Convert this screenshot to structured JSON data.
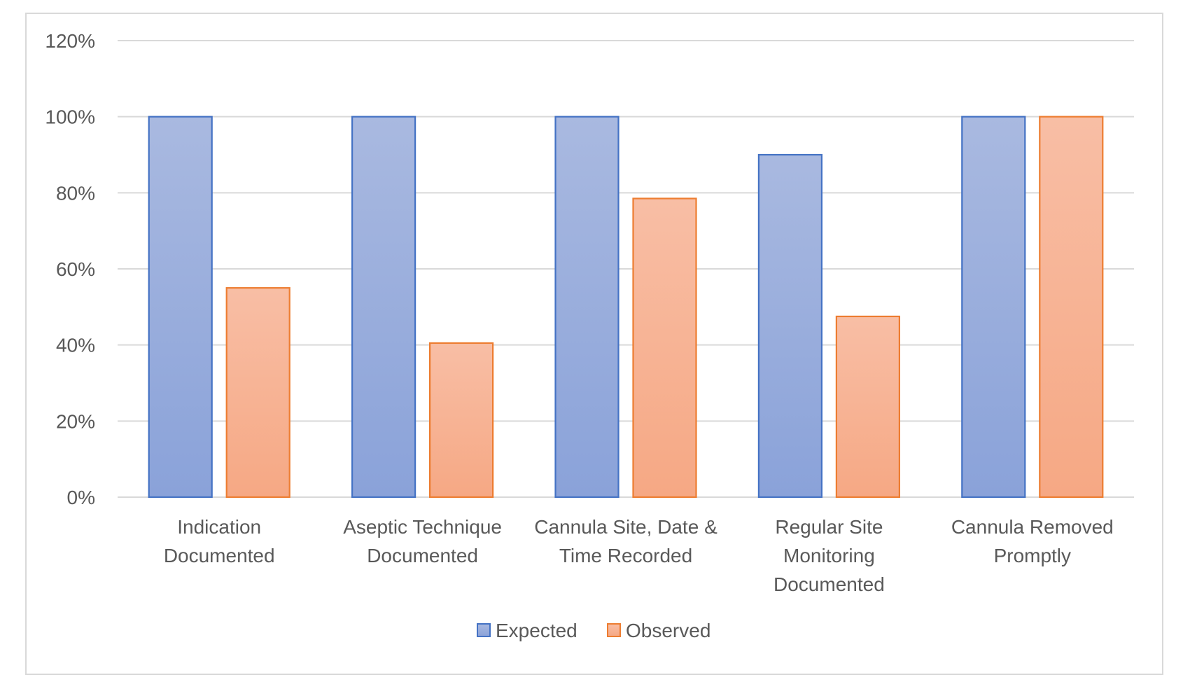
{
  "chart_data": {
    "type": "bar",
    "title": "",
    "xlabel": "",
    "ylabel": "",
    "categories": [
      [
        "Indication",
        "Documented"
      ],
      [
        "Aseptic Technique",
        "Documented"
      ],
      [
        "Cannula Site, Date &",
        "Time Recorded"
      ],
      [
        "Regular Site",
        "Monitoring",
        "Documented"
      ],
      [
        "Cannula Removed",
        "Promptly"
      ]
    ],
    "series": [
      {
        "name": "Expected",
        "values": [
          100,
          100,
          100,
          90,
          100
        ],
        "fill_top": "#a9b9e0",
        "fill_bottom": "#8aa2d9",
        "stroke": "#4472c4"
      },
      {
        "name": "Observed",
        "values": [
          55,
          40.5,
          78.5,
          47.5,
          100
        ],
        "fill_top": "#f8bea5",
        "fill_bottom": "#f6a884",
        "stroke": "#ed7d31"
      }
    ],
    "ylim": [
      0,
      120
    ],
    "yticks": [
      0,
      20,
      40,
      60,
      80,
      100,
      120
    ],
    "ytick_labels": [
      "0%",
      "20%",
      "40%",
      "60%",
      "80%",
      "100%",
      "120%"
    ],
    "grid": true,
    "legend_position": "bottom",
    "gridline_color": "#d9d9d9"
  }
}
